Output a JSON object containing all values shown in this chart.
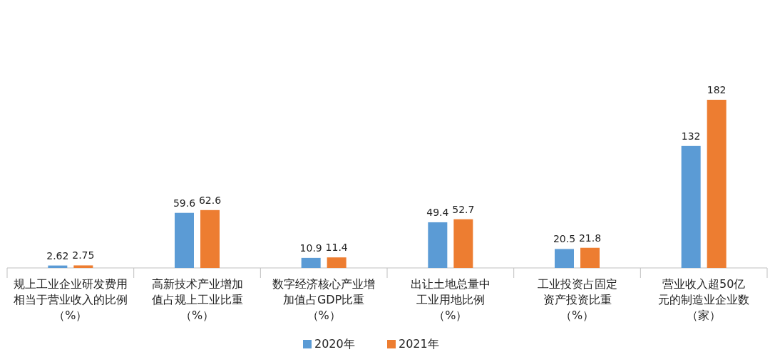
{
  "chart_data": {
    "type": "bar",
    "categories": [
      "规上工业企业研发费用相当于营业收入的比例（%）",
      "高新技术产业增加值占规上工业比重（%）",
      "数字经济核心产业增加值占GDP比重（%）",
      "出让土地总量中工业用地比例（%）",
      "工业投资占固定资产投资比重（%）",
      "营业收入超50亿元的制造业企业数（家）"
    ],
    "series": [
      {
        "name": "2020年",
        "color": "#5b9bd5",
        "values": [
          2.62,
          59.6,
          10.9,
          49.4,
          20.5,
          132
        ]
      },
      {
        "name": "2021年",
        "color": "#ed7d31",
        "values": [
          2.75,
          62.6,
          11.4,
          52.7,
          21.8,
          182
        ]
      }
    ],
    "data_labels": true,
    "legend": "bottom"
  }
}
